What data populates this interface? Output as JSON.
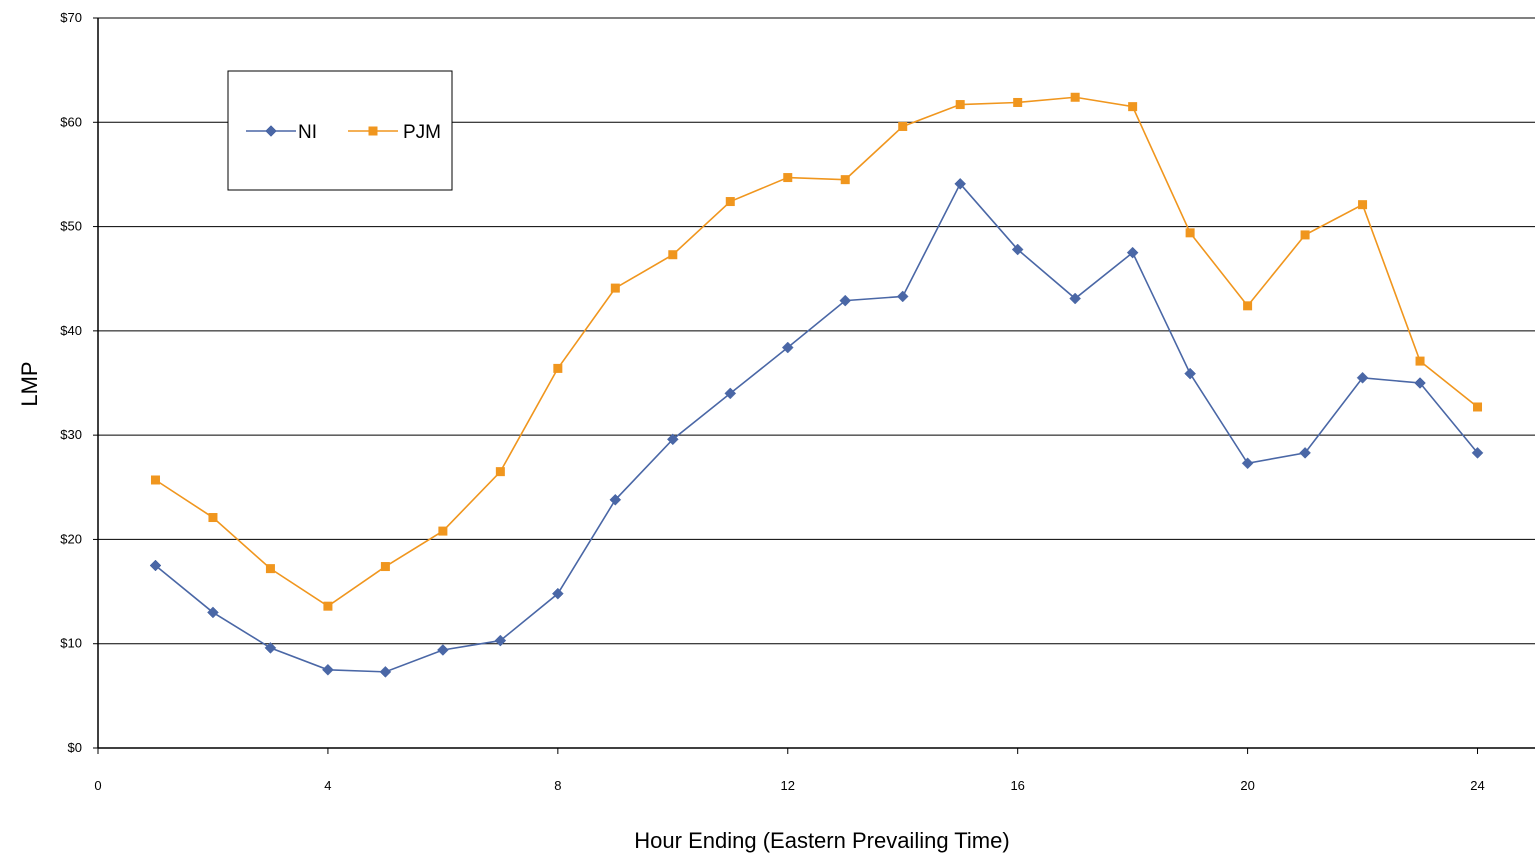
{
  "chart_data": {
    "type": "line",
    "title": "",
    "xlabel": "Hour Ending (Eastern Prevailing Time)",
    "ylabel": "LMP",
    "xlim": [
      0,
      25
    ],
    "ylim": [
      0,
      70
    ],
    "x_ticks": [
      0,
      4,
      8,
      12,
      16,
      20,
      24
    ],
    "x_tick_labels": [
      "0",
      "4",
      "8",
      "12",
      "16",
      "20",
      "24"
    ],
    "y_ticks": [
      0,
      10,
      20,
      30,
      40,
      50,
      60,
      70
    ],
    "y_tick_labels": [
      "$0",
      "$10",
      "$20",
      "$30",
      "$40",
      "$50",
      "$60",
      "$70"
    ],
    "grid": "horizontal",
    "legend_position": "top-left",
    "x": [
      1,
      2,
      3,
      4,
      5,
      6,
      7,
      8,
      9,
      10,
      11,
      12,
      13,
      14,
      15,
      16,
      17,
      18,
      19,
      20,
      21,
      22,
      23,
      24
    ],
    "series": [
      {
        "name": "NI",
        "color": "#4A67A6",
        "marker": "diamond",
        "values": [
          17.5,
          13.0,
          9.6,
          7.5,
          7.3,
          9.4,
          10.3,
          14.8,
          23.8,
          29.6,
          34.0,
          38.4,
          42.9,
          43.3,
          54.1,
          47.8,
          43.1,
          47.5,
          35.9,
          27.3,
          28.3,
          35.5,
          35.0,
          28.3
        ]
      },
      {
        "name": "PJM",
        "color": "#F0961E",
        "marker": "square",
        "values": [
          25.7,
          22.1,
          17.2,
          13.6,
          17.4,
          20.8,
          26.5,
          36.4,
          44.1,
          47.3,
          52.4,
          54.7,
          54.5,
          59.6,
          61.7,
          61.9,
          62.4,
          61.5,
          49.4,
          42.4,
          49.2,
          52.1,
          37.1,
          32.7
        ]
      }
    ]
  }
}
